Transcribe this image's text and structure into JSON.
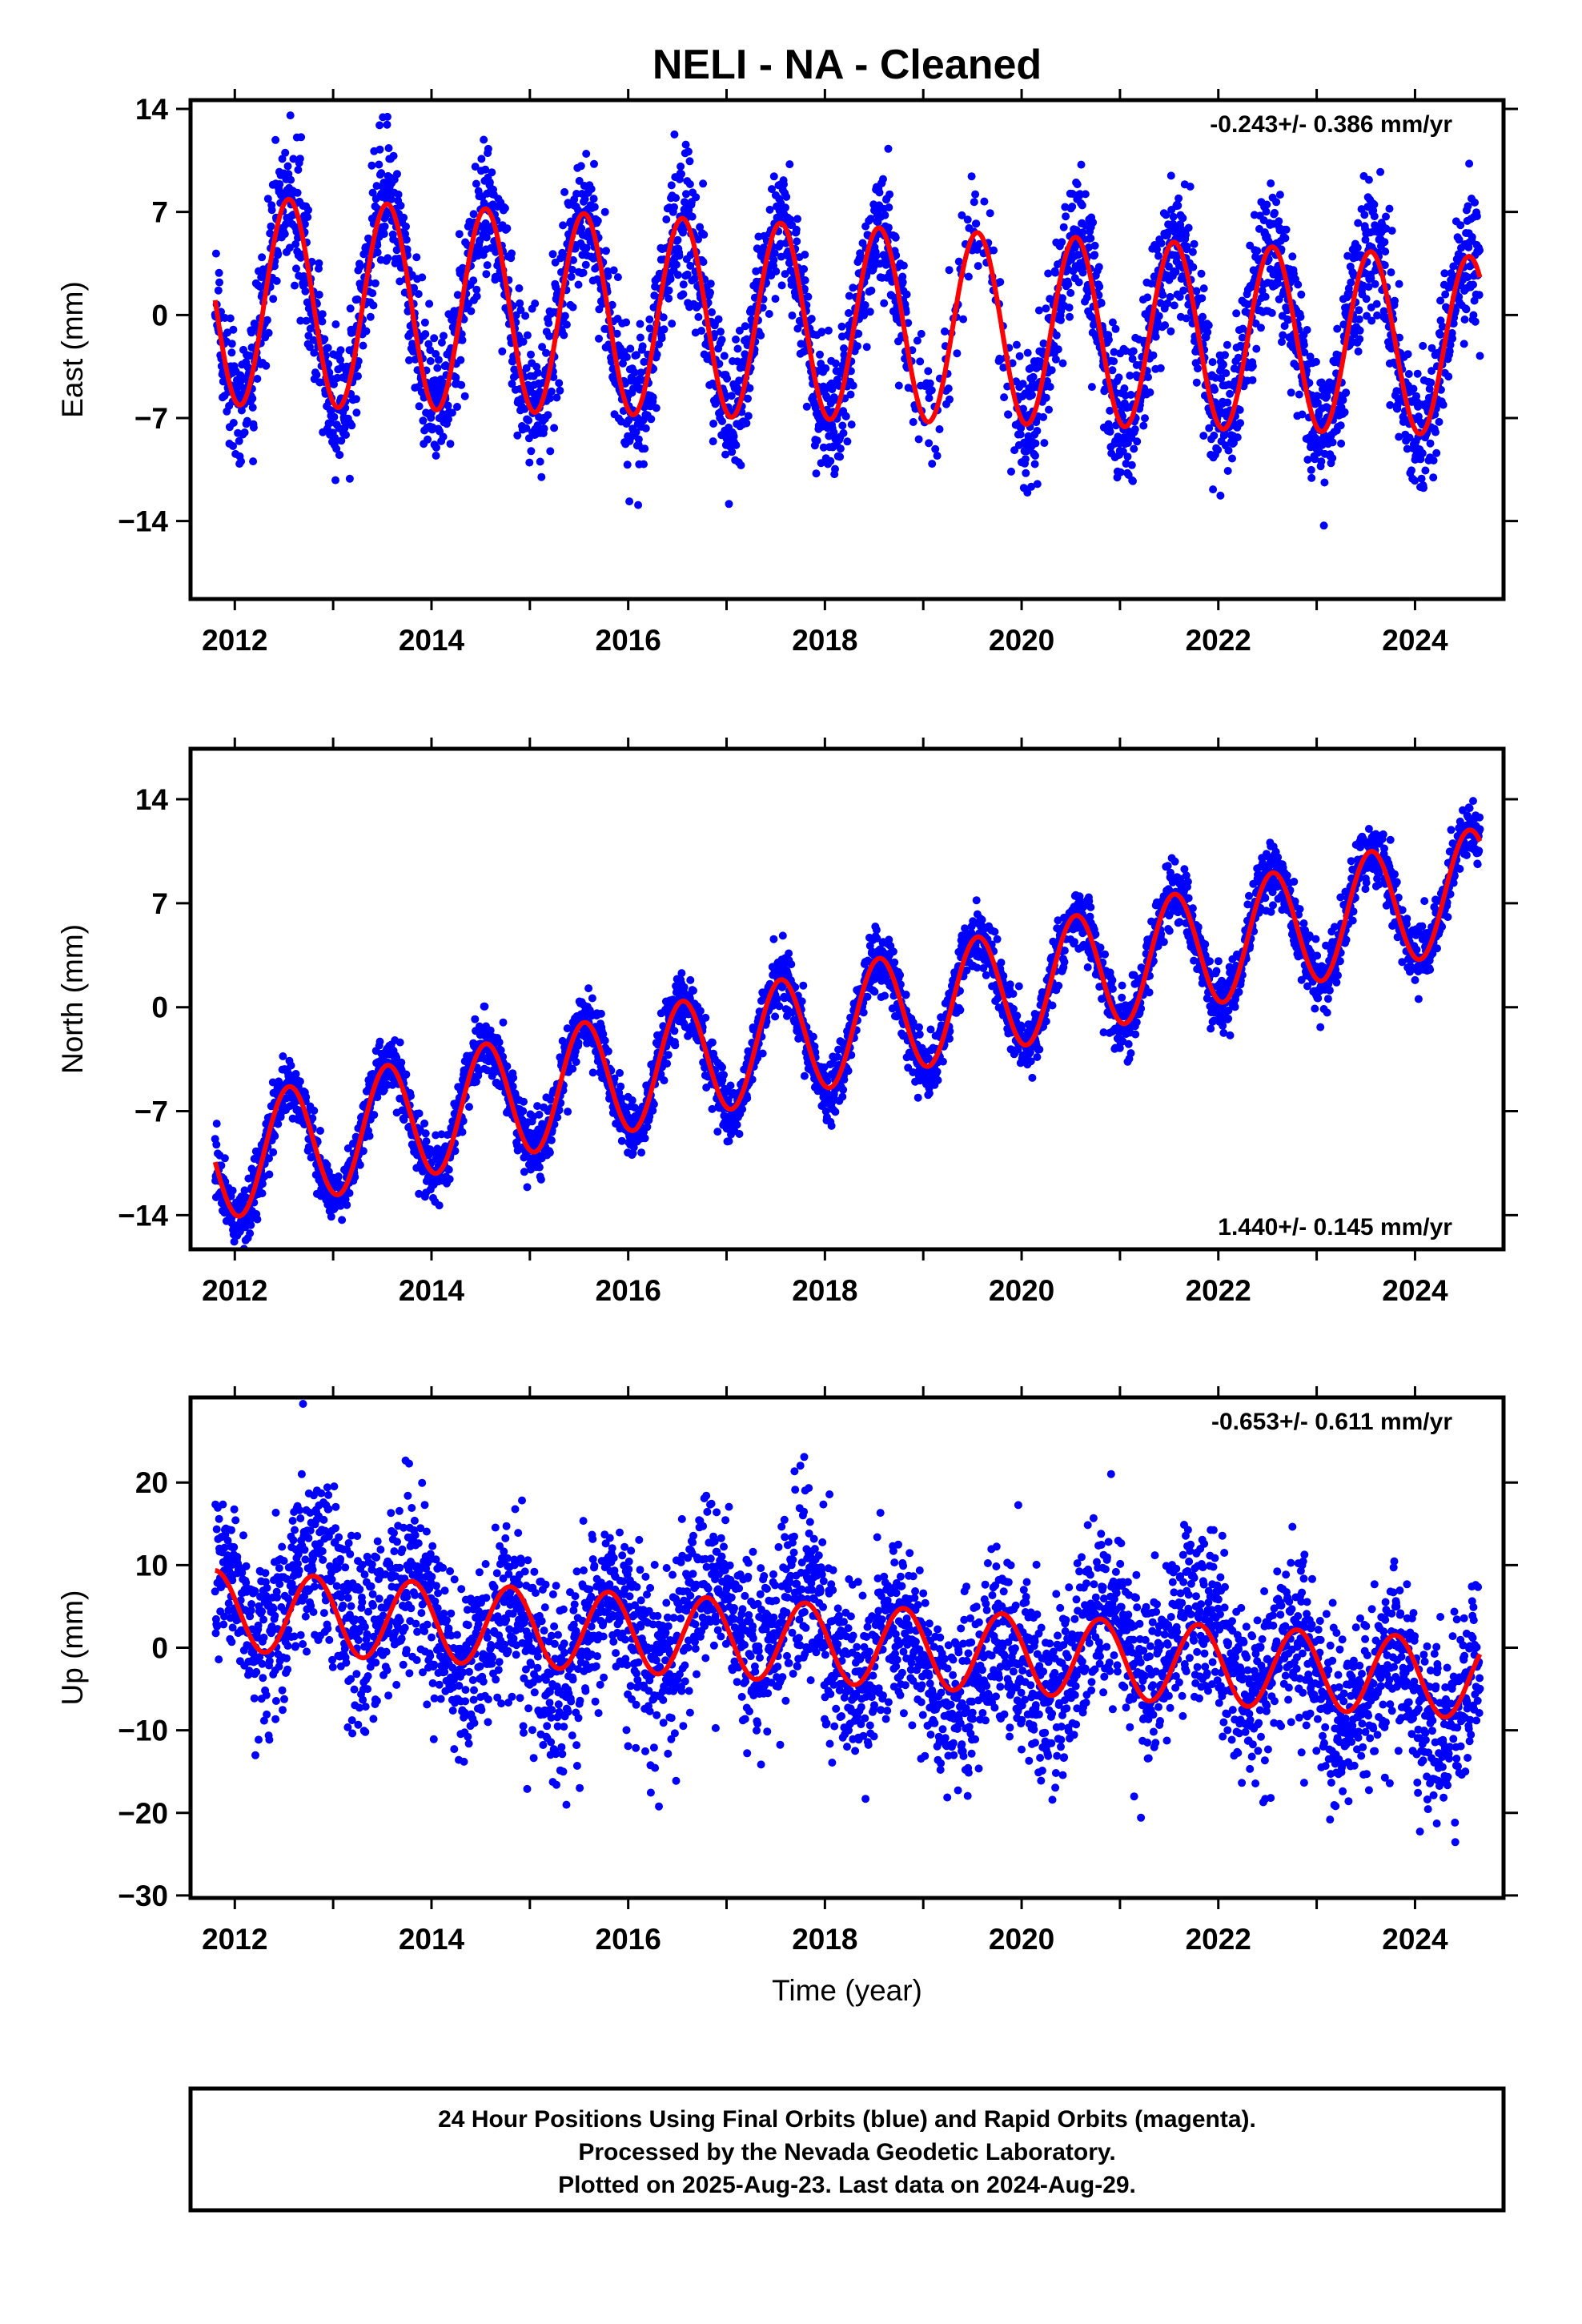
{
  "title": "NELI  - NA - Cleaned",
  "colors": {
    "points": "#0000ff",
    "fit": "#ff0000",
    "frame": "#000000"
  },
  "chart_data": [
    {
      "type": "scatter",
      "component": "east",
      "ylabel": "East (mm)",
      "xlabel": "",
      "xlim": [
        2011.55,
        2024.9
      ],
      "ylim": [
        -19.3,
        14.6
      ],
      "xticks": [
        "2012",
        "2014",
        "2016",
        "2018",
        "2020",
        "2022",
        "2024"
      ],
      "yticks": [
        "14",
        "7",
        "0",
        "−7",
        "−14"
      ],
      "ytick_values": [
        14,
        7,
        0,
        -7,
        -14
      ],
      "rate_label": "-0.243+/- 0.386 mm/yr",
      "rate_position": "top-right",
      "data_range": [
        2011.8,
        2024.66
      ],
      "model": {
        "offset": -0.5,
        "trend_mm_per_yr": -0.243,
        "t0": 2018,
        "annual_amplitude": 7.1,
        "annual_peak": 2012.55,
        "amplitude_decay_per_yr": 0.08,
        "noise_sd": 2.3
      },
      "series": [
        {
          "name": "Final Orbits (blue)",
          "kind": "points",
          "approx_daily_positions": 3900
        },
        {
          "name": "",
          "kind": "fit_line"
        }
      ]
    },
    {
      "type": "scatter",
      "component": "north",
      "ylabel": "North (mm)",
      "xlabel": "",
      "xlim": [
        2011.55,
        2024.9
      ],
      "ylim": [
        -16.3,
        17.4
      ],
      "xticks": [
        "2012",
        "2014",
        "2016",
        "2018",
        "2020",
        "2022",
        "2024"
      ],
      "yticks": [
        "14",
        "7",
        "0",
        "−7",
        "−14"
      ],
      "ytick_values": [
        14,
        7,
        0,
        -7,
        -14
      ],
      "rate_label": "1.440+/- 0.145 mm/yr",
      "rate_position": "bottom-right",
      "data_range": [
        2011.8,
        2024.66
      ],
      "model": {
        "offset": -1.5,
        "trend_mm_per_yr": 1.44,
        "t0": 2018,
        "annual_amplitude": 4.0,
        "annual_peak": 2012.55,
        "amplitude_decay_per_yr": 0,
        "noise_sd": 1.0
      },
      "series": [
        {
          "name": "Final Orbits (blue)",
          "kind": "points",
          "approx_daily_positions": 3900
        },
        {
          "name": "",
          "kind": "fit_line"
        }
      ]
    },
    {
      "type": "scatter",
      "component": "up",
      "ylabel": "Up (mm)",
      "xlabel": "Time (year)",
      "xlim": [
        2011.55,
        2024.9
      ],
      "ylim": [
        -30.3,
        30.3
      ],
      "xticks": [
        "2012",
        "2014",
        "2016",
        "2018",
        "2020",
        "2022",
        "2024"
      ],
      "yticks": [
        "20",
        "10",
        "0",
        "−10",
        "−20",
        "−30"
      ],
      "ytick_values": [
        20,
        10,
        0,
        -10,
        -20,
        -30
      ],
      "rate_label": "-0.653+/- 0.611 mm/yr",
      "rate_position": "top-right",
      "data_range": [
        2011.8,
        2024.66
      ],
      "model": {
        "offset": 0.5,
        "trend_mm_per_yr": -0.653,
        "t0": 2018,
        "annual_amplitude": 4.8,
        "annual_peak": 2012.8,
        "amplitude_decay_per_yr": 0,
        "noise_sd": 5.2
      },
      "series": [
        {
          "name": "Final Orbits (blue)",
          "kind": "points",
          "approx_daily_positions": 3900
        },
        {
          "name": "",
          "kind": "fit_line"
        }
      ]
    }
  ],
  "footer": {
    "line1": "24 Hour Positions Using Final Orbits (blue) and Rapid Orbits (magenta).",
    "line2": "Processed by the Nevada Geodetic Laboratory.",
    "line3": "Plotted on 2025-Aug-23. Last data on 2024-Aug-29."
  }
}
